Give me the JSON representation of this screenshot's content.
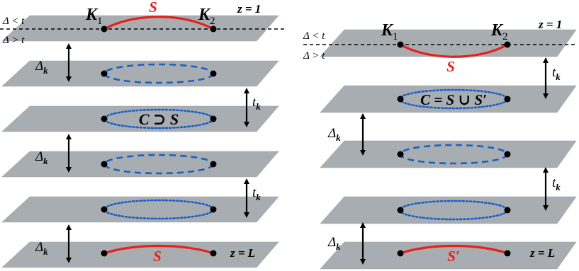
{
  "left": {
    "threshold_above": "Δ < t",
    "threshold_below": "Δ > t",
    "k1": "K",
    "k1_sub": "1",
    "k2": "K",
    "k2_sub": "2",
    "top_curve_label": "S",
    "z_top": "z = 1",
    "inner_label": "C ⊃ S",
    "bottom_curve_label": "S",
    "z_bottom": "z = L",
    "gap_delta": "Δ",
    "gap_delta_sub": "k",
    "gap_t": "t",
    "gap_t_sub": "k"
  },
  "right": {
    "threshold_above": "Δ < t",
    "threshold_below": "Δ > t",
    "k1": "K",
    "k1_sub": "1",
    "k2": "K",
    "k2_sub": "2",
    "top_curve_label": "S",
    "z_top": "z = 1",
    "inner_label": "C = S ∪ S′",
    "bottom_curve_label": "S′",
    "z_bottom": "z = L",
    "gap_delta": "Δ",
    "gap_delta_sub": "k",
    "gap_t": "t",
    "gap_t_sub": "k"
  },
  "colors": {
    "plane": "#a8adb2",
    "red": "#e8201a",
    "blue": "#1b5fc8"
  }
}
